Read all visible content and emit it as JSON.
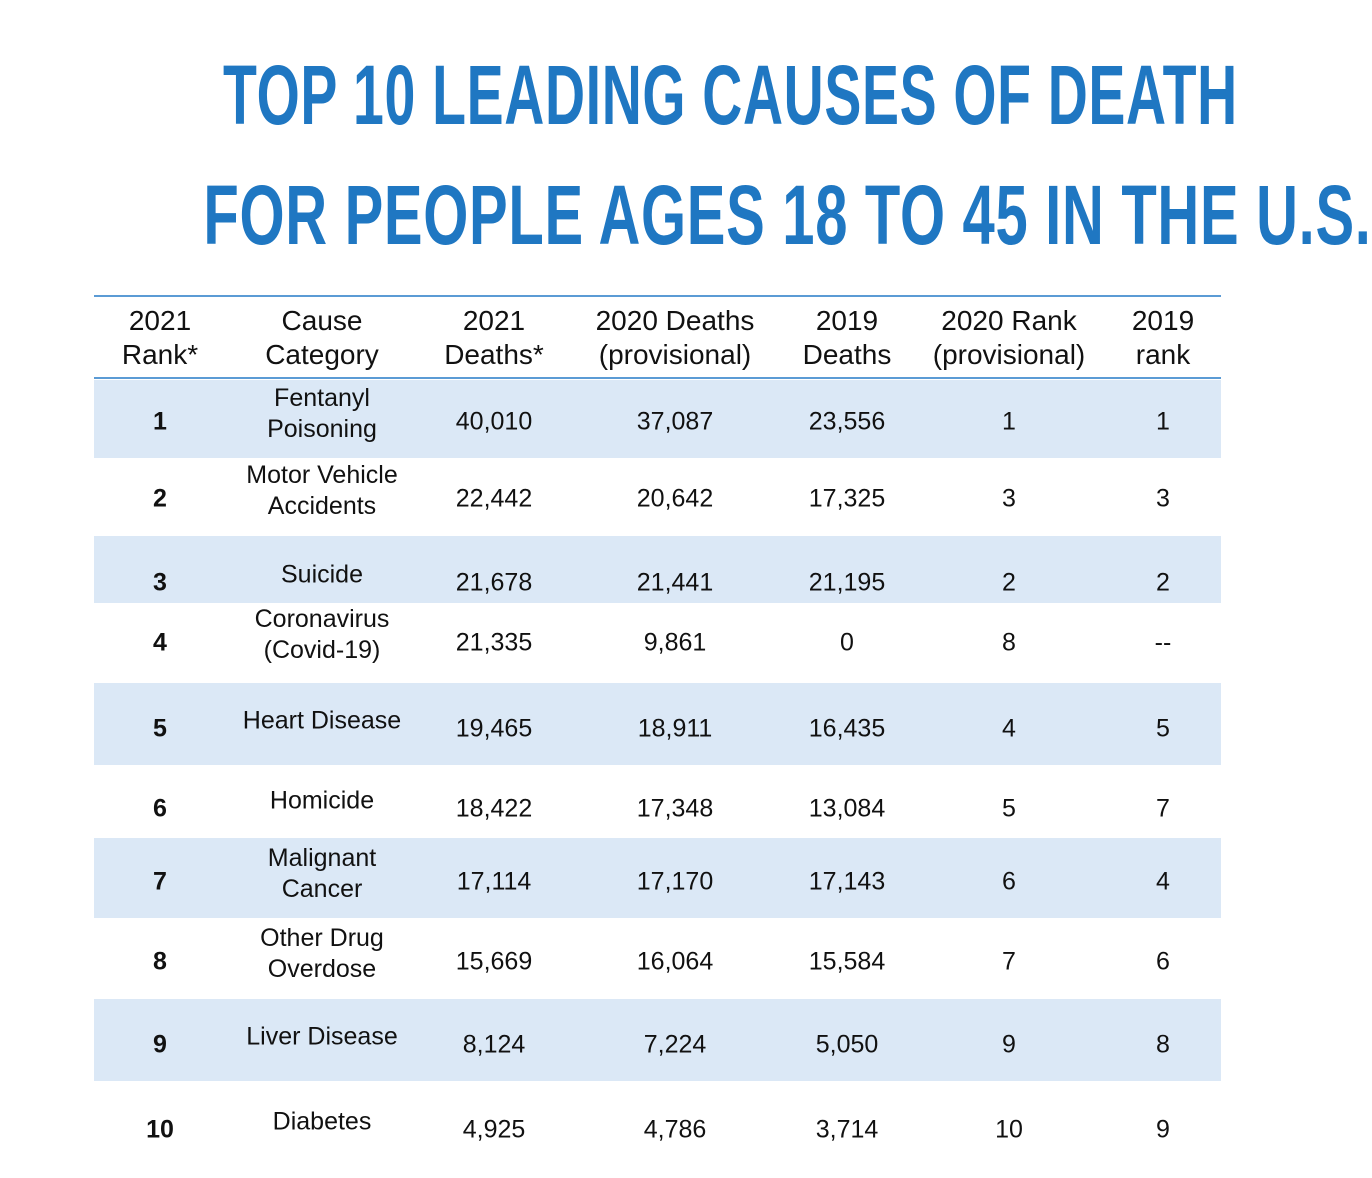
{
  "title": {
    "line1": "TOP 10 LEADING CAUSES OF DEATH",
    "line2": "FOR PEOPLE AGES 18 TO 45 IN THE U.S."
  },
  "colors": {
    "title": "#1f77c2",
    "band": "#dbe8f6",
    "rule": "#5b9bd5",
    "text": "#111111"
  },
  "chart_data": {
    "type": "table",
    "title": "TOP 10 LEADING CAUSES OF DEATH FOR PEOPLE AGES 18 TO 45 IN THE U.S.",
    "columns": [
      [
        "2021",
        "Rank*"
      ],
      [
        "Cause",
        "Category"
      ],
      [
        "2021",
        "Deaths*"
      ],
      [
        "2020 Deaths",
        "(provisional)"
      ],
      [
        "2019",
        "Deaths"
      ],
      [
        "2020 Rank",
        "(provisional)"
      ],
      [
        "2019",
        "rank"
      ]
    ],
    "rows": [
      [
        "1",
        [
          "Fentanyl",
          "Poisoning"
        ],
        "40,010",
        "37,087",
        "23,556",
        "1",
        "1"
      ],
      [
        "2",
        [
          "Motor Vehicle",
          "Accidents"
        ],
        "22,442",
        "20,642",
        "17,325",
        "3",
        "3"
      ],
      [
        "3",
        [
          "Suicide"
        ],
        "21,678",
        "21,441",
        "21,195",
        "2",
        "2"
      ],
      [
        "4",
        [
          "Coronavirus",
          "(Covid-19)"
        ],
        "21,335",
        "9,861",
        "0",
        "8",
        "--"
      ],
      [
        "5",
        [
          "Heart Disease"
        ],
        "19,465",
        "18,911",
        "16,435",
        "4",
        "5"
      ],
      [
        "6",
        [
          "Homicide"
        ],
        "18,422",
        "17,348",
        "13,084",
        "5",
        "7"
      ],
      [
        "7",
        [
          "Malignant",
          "Cancer"
        ],
        "17,114",
        "17,170",
        "17,143",
        "6",
        "4"
      ],
      [
        "8",
        [
          "Other Drug",
          "Overdose"
        ],
        "15,669",
        "16,064",
        "15,584",
        "7",
        "6"
      ],
      [
        "9",
        [
          "Liver Disease"
        ],
        "8,124",
        "7,224",
        "5,050",
        "9",
        "8"
      ],
      [
        "10",
        [
          "Diabetes"
        ],
        "4,925",
        "4,786",
        "3,714",
        "10",
        "9"
      ]
    ]
  }
}
